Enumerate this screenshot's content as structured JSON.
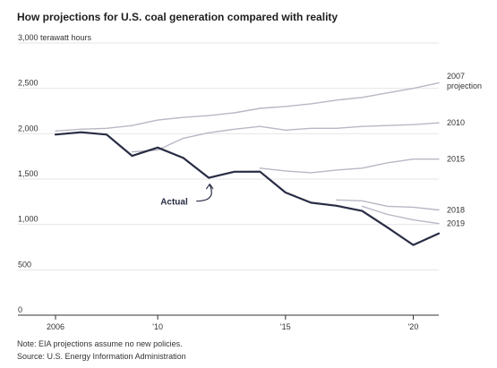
{
  "title": "How projections for U.S. coal generation compared with reality",
  "note": "Note: EIA projections assume no new policies.",
  "source": "Source: U.S. Energy Information Administration",
  "colors": {
    "actual": "#282c44",
    "projection": "#b8b8c4",
    "grid": "#e6e6e6",
    "axis": "#333333",
    "text": "#333333"
  },
  "chart_data": {
    "type": "line",
    "title": "How projections for U.S. coal generation compared with reality",
    "xlabel": "",
    "ylabel": "terawatt hours",
    "xlim": [
      2006,
      2021
    ],
    "ylim": [
      0,
      3000
    ],
    "grid": true,
    "y_ticks": [
      {
        "value": 3000,
        "label": "3,000 terawatt hours"
      },
      {
        "value": 2500,
        "label": "2,500"
      },
      {
        "value": 2000,
        "label": "2,000"
      },
      {
        "value": 1500,
        "label": "1,500"
      },
      {
        "value": 1000,
        "label": "1,000"
      },
      {
        "value": 500,
        "label": "500"
      },
      {
        "value": 0,
        "label": "0"
      }
    ],
    "x_ticks": [
      {
        "value": 2006,
        "label": "2006"
      },
      {
        "value": 2010,
        "label": "'10"
      },
      {
        "value": 2015,
        "label": "'15"
      },
      {
        "value": 2020,
        "label": "'20"
      }
    ],
    "series": [
      {
        "name": "2007 projection",
        "kind": "projection",
        "label_lines": [
          "2007",
          "projection"
        ],
        "x": [
          2006,
          2007,
          2008,
          2009,
          2010,
          2011,
          2012,
          2013,
          2014,
          2015,
          2016,
          2017,
          2018,
          2019,
          2020,
          2021
        ],
        "y": [
          2030,
          2050,
          2060,
          2090,
          2150,
          2180,
          2200,
          2230,
          2280,
          2300,
          2330,
          2370,
          2400,
          2450,
          2500,
          2560
        ]
      },
      {
        "name": "2010",
        "kind": "projection",
        "label_lines": [
          "2010"
        ],
        "x": [
          2009,
          2010,
          2011,
          2012,
          2013,
          2014,
          2015,
          2016,
          2017,
          2018,
          2019,
          2020,
          2021
        ],
        "y": [
          1800,
          1820,
          1950,
          2010,
          2050,
          2080,
          2040,
          2060,
          2060,
          2080,
          2090,
          2100,
          2120
        ]
      },
      {
        "name": "2015",
        "kind": "projection",
        "label_lines": [
          "2015"
        ],
        "x": [
          2014,
          2015,
          2016,
          2017,
          2018,
          2019,
          2020,
          2021
        ],
        "y": [
          1620,
          1590,
          1570,
          1600,
          1620,
          1680,
          1720,
          1720
        ]
      },
      {
        "name": "2018",
        "kind": "projection",
        "label_lines": [
          "2018"
        ],
        "x": [
          2017,
          2018,
          2019,
          2020,
          2021
        ],
        "y": [
          1270,
          1260,
          1200,
          1190,
          1160
        ]
      },
      {
        "name": "2019",
        "kind": "projection",
        "label_lines": [
          "2019"
        ],
        "x": [
          2018,
          2019,
          2020,
          2021
        ],
        "y": [
          1200,
          1110,
          1050,
          1010
        ]
      },
      {
        "name": "Actual",
        "kind": "actual",
        "label_lines": [
          "Actual"
        ],
        "x": [
          2006,
          2007,
          2008,
          2009,
          2010,
          2011,
          2012,
          2013,
          2014,
          2015,
          2016,
          2017,
          2018,
          2019,
          2020,
          2021
        ],
        "y": [
          1990,
          2016,
          1990,
          1756,
          1847,
          1733,
          1514,
          1581,
          1582,
          1352,
          1239,
          1206,
          1149,
          965,
          774,
          900
        ]
      }
    ]
  }
}
